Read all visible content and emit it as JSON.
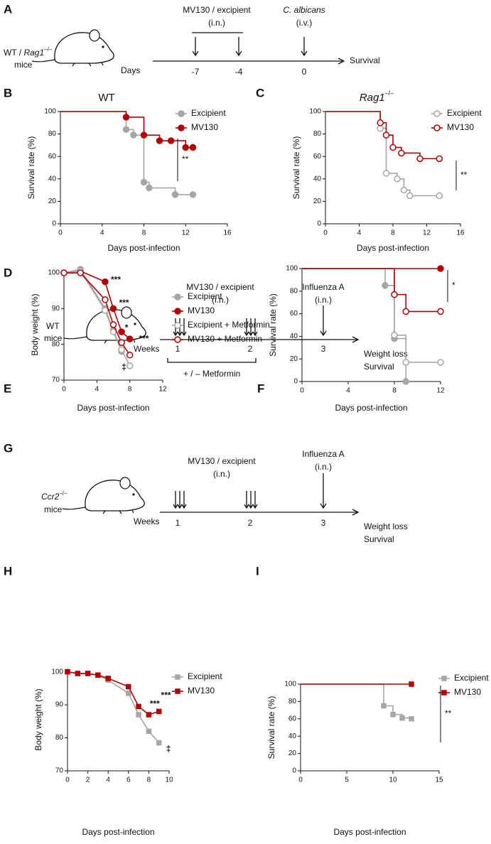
{
  "schematics": [
    {
      "label": "A",
      "subject": {
        "prefix": "WT / ",
        "gene": "Rag1",
        "sup": "–/–",
        "line2": "mice"
      },
      "treatment": "MV130 / excipient",
      "treatment_route": "(i.n.)",
      "challenge": "C. albicans",
      "challenge_route": "(i.v.)",
      "axis_label": "Days",
      "timepoints": [
        "-7",
        "-4",
        "0"
      ],
      "outcome": [
        "Survival"
      ]
    },
    {
      "label": "D",
      "subject": {
        "line1": "WT",
        "line2": "mice"
      },
      "treatment": "MV130 / excipient",
      "treatment_route": "(i.n.)",
      "challenge": "Influenza A",
      "challenge_route": "(i.n.)",
      "axis_label": "Weeks",
      "timepoints": [
        "1",
        "2",
        "3"
      ],
      "outcome": [
        "Weight loss",
        "Survival"
      ],
      "cotreatment": "+ / – Metformin"
    },
    {
      "label": "G",
      "subject": {
        "gene": "Ccr2",
        "sup": "–/–",
        "line2": "mice"
      },
      "treatment": "MV130 / excipient",
      "treatment_route": "(i.n.)",
      "challenge": "Influenza A",
      "challenge_route": "(i.n.)",
      "axis_label": "Weeks",
      "timepoints": [
        "1",
        "2",
        "3"
      ],
      "outcome": [
        "Weight loss",
        "Survival"
      ]
    }
  ],
  "chart_data": [
    {
      "panel": "B",
      "type": "step",
      "title": {
        "text": "WT"
      },
      "xlabel": "Days post-infection",
      "ylabel": "Survival rate (%)",
      "xlim": [
        0,
        16
      ],
      "xticks": [
        0,
        4,
        8,
        12,
        16
      ],
      "ylim": [
        0,
        100
      ],
      "yticks": [
        0,
        20,
        40,
        60,
        80,
        100
      ],
      "series": [
        {
          "name": "Excipient",
          "color": "#a6a6a6",
          "marker": "circle",
          "filled": true,
          "x": [
            0,
            6.3,
            7,
            8,
            8.5,
            11,
            12.7
          ],
          "values": [
            100,
            84,
            79,
            37,
            32,
            26,
            26
          ]
        },
        {
          "name": "MV130",
          "color": "#b30000",
          "marker": "circle",
          "filled": true,
          "x": [
            0,
            6.3,
            8,
            9.5,
            10.6,
            12,
            12.7
          ],
          "values": [
            100,
            95,
            79,
            74,
            74,
            68,
            68
          ]
        }
      ],
      "significance": "**"
    },
    {
      "panel": "C",
      "type": "step",
      "title": {
        "gene": "Rag1",
        "sup": "–/–"
      },
      "xlabel": "Days post-infection",
      "ylabel": "Survival rate (%)",
      "xlim": [
        0,
        16
      ],
      "xticks": [
        0,
        4,
        8,
        12,
        16
      ],
      "ylim": [
        0,
        100
      ],
      "yticks": [
        0,
        20,
        40,
        60,
        80,
        100
      ],
      "series": [
        {
          "name": "Excipient",
          "color": "#a6a6a6",
          "marker": "circle",
          "filled": false,
          "x": [
            0,
            6.5,
            7.2,
            8.5,
            9.3,
            10,
            13.5
          ],
          "values": [
            100,
            85,
            45,
            40,
            30,
            25,
            25
          ]
        },
        {
          "name": "MV130",
          "color": "#b30000",
          "marker": "circle",
          "filled": false,
          "x": [
            0,
            6.5,
            7.2,
            8,
            9,
            11.2,
            13.5
          ],
          "values": [
            100,
            90,
            79,
            68,
            63,
            58,
            58
          ]
        }
      ],
      "significance": "**"
    },
    {
      "panel": "E",
      "type": "line",
      "xlabel": "Days post-infection",
      "ylabel": "Body weight (%)",
      "xlim": [
        0,
        12
      ],
      "xticks": [
        0,
        4,
        8,
        12
      ],
      "ylim": [
        70,
        101
      ],
      "yticks": [
        70,
        80,
        90,
        100
      ],
      "series": [
        {
          "name": "Excipient",
          "color": "#a6a6a6",
          "marker": "circle",
          "filled": true,
          "x": [
            0,
            2,
            5,
            6,
            7
          ],
          "values": [
            100,
            101,
            90,
            84,
            78
          ]
        },
        {
          "name": "MV130",
          "color": "#b30000",
          "marker": "circle",
          "filled": true,
          "x": [
            0,
            2,
            5,
            6,
            7,
            8
          ],
          "values": [
            100,
            100.5,
            97.5,
            90,
            83.5,
            81.5
          ]
        },
        {
          "name": "Excipient + Metformin",
          "color": "#a6a6a6",
          "marker": "circle",
          "filled": false,
          "x": [
            0,
            2,
            5,
            6,
            7,
            8
          ],
          "values": [
            100,
            100.5,
            89.5,
            83.5,
            78.5,
            74
          ]
        },
        {
          "name": "MV130 + Metformin",
          "color": "#b30000",
          "marker": "circle",
          "filled": false,
          "x": [
            0,
            2,
            5,
            6,
            7,
            8
          ],
          "values": [
            100,
            100,
            92.5,
            85.5,
            80.5,
            77
          ]
        }
      ],
      "annotations": [
        "***",
        "***",
        "*",
        "***",
        "‡"
      ]
    },
    {
      "panel": "F",
      "type": "step",
      "xlabel": "Days post-infection",
      "ylabel": "Survival rate (%)",
      "xlim": [
        0,
        12
      ],
      "xticks": [
        0,
        4,
        8,
        12
      ],
      "ylim": [
        0,
        100
      ],
      "yticks": [
        0,
        20,
        40,
        60,
        80,
        100
      ],
      "series": [
        {
          "color": "#a6a6a6",
          "marker": "circle",
          "filled": true,
          "x": [
            0,
            7.2,
            8,
            9
          ],
          "values": [
            100,
            85,
            38,
            0
          ]
        },
        {
          "color": "#b30000",
          "marker": "circle",
          "filled": true,
          "x": [
            0,
            12
          ],
          "values": [
            100,
            100
          ]
        },
        {
          "color": "#a6a6a6",
          "marker": "circle",
          "filled": false,
          "x": [
            0,
            8,
            9,
            12
          ],
          "values": [
            100,
            41,
            17,
            17
          ]
        },
        {
          "color": "#b30000",
          "marker": "circle",
          "filled": false,
          "x": [
            0,
            8,
            9,
            12
          ],
          "values": [
            100,
            77,
            62,
            62
          ]
        }
      ],
      "significance": "*"
    },
    {
      "panel": "H",
      "type": "line",
      "xlabel": "Days post-infection",
      "ylabel": "Body weight (%)",
      "xlim": [
        0,
        10
      ],
      "xticks": [
        0,
        2,
        4,
        6,
        8,
        10
      ],
      "ylim": [
        70,
        101
      ],
      "yticks": [
        70,
        80,
        90,
        100
      ],
      "series": [
        {
          "name": "Excipient",
          "color": "#a6a6a6",
          "marker": "square",
          "filled": true,
          "x": [
            0,
            1,
            2,
            3,
            4,
            6,
            7,
            8,
            9
          ],
          "values": [
            100,
            99.5,
            99.5,
            99,
            97.5,
            93.5,
            87,
            82,
            78.5
          ]
        },
        {
          "name": "MV130",
          "color": "#b30000",
          "marker": "square",
          "filled": true,
          "x": [
            0,
            1,
            2,
            3,
            4,
            6,
            7,
            8,
            9
          ],
          "values": [
            100,
            99.5,
            99.5,
            99,
            98,
            95.5,
            89.5,
            87,
            88
          ]
        }
      ],
      "annotations": [
        "***",
        "***",
        "‡"
      ]
    },
    {
      "panel": "I",
      "type": "step",
      "xlabel": "Days post-infection",
      "ylabel": "Survival rate (%)",
      "xlim": [
        0,
        15
      ],
      "xticks": [
        0,
        5,
        10,
        15
      ],
      "ylim": [
        0,
        100
      ],
      "yticks": [
        0,
        20,
        40,
        60,
        80,
        100
      ],
      "series": [
        {
          "name": "Excipient",
          "color": "#a6a6a6",
          "marker": "square",
          "filled": true,
          "x": [
            0,
            9,
            10,
            11,
            12
          ],
          "values": [
            100,
            75,
            65,
            61,
            60
          ]
        },
        {
          "name": "MV130",
          "color": "#b30000",
          "marker": "square",
          "filled": true,
          "x": [
            0,
            12
          ],
          "values": [
            100,
            100
          ]
        }
      ],
      "significance": "**"
    }
  ]
}
